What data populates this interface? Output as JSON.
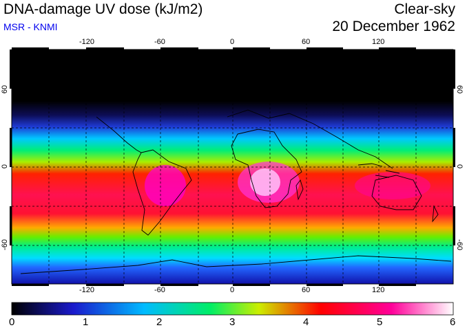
{
  "header": {
    "title": "DNA-damage UV dose (kJ/m2)",
    "subtitle": "MSR - KNMI",
    "mode": "Clear-sky",
    "date": "20 December 1962"
  },
  "map": {
    "lon_ticks": [
      "-120",
      "-60",
      "0",
      "60",
      "120"
    ],
    "lat_ticks": [
      "60",
      "0",
      "-60"
    ],
    "lat_ticks_right": [
      "60",
      "0",
      "-60"
    ]
  },
  "colorbar": {
    "labels": [
      "0",
      "1",
      "2",
      "3",
      "4",
      "5",
      "6"
    ],
    "min": 0,
    "max": 6,
    "unit": "kJ/m2",
    "stops": [
      "#000000",
      "#1a1acc",
      "#00bbff",
      "#00ee66",
      "#ccee00",
      "#ff0000",
      "#ff0099",
      "#ffffff"
    ]
  },
  "colors": {
    "subtitle": "#0000ee"
  }
}
